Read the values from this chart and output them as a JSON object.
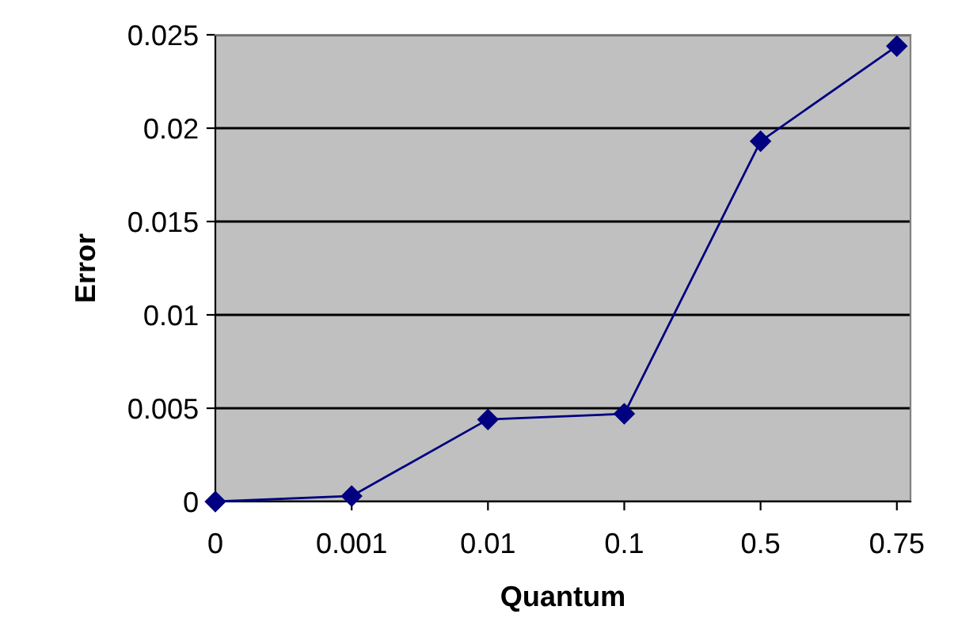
{
  "chart_data": {
    "type": "line",
    "xlabel": "Quantum",
    "ylabel": "Error",
    "categories": [
      "0",
      "0.001",
      "0.01",
      "0.1",
      "0.5",
      "0.75"
    ],
    "series": [
      {
        "color": "#000080",
        "values": [
          0,
          0.0003,
          0.0044,
          0.0047,
          0.0193,
          0.0244
        ]
      }
    ],
    "ylim": [
      0,
      0.025
    ],
    "yticks": [
      {
        "value": 0,
        "label": "0"
      },
      0.005,
      0.01,
      0.015,
      0.02,
      0.025
    ],
    "grid": "y",
    "marker": "diamond",
    "line_style": "solid"
  }
}
